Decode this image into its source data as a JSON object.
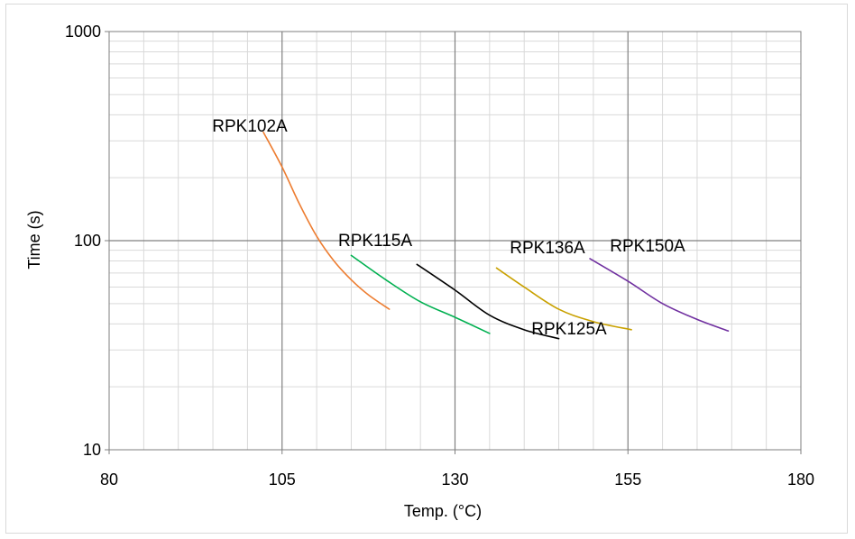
{
  "chart_data": {
    "type": "line",
    "title": "",
    "xlabel": "Temp. (°C)",
    "ylabel": "Time (s)",
    "xlim": [
      80,
      180
    ],
    "ylim": [
      10,
      1000
    ],
    "y_scale": "log",
    "x_ticks": [
      "80",
      "105",
      "130",
      "155",
      "180"
    ],
    "y_ticks": [
      "10",
      "100",
      "1000"
    ],
    "grid": true,
    "legend": "none",
    "series": [
      {
        "name": "RPK102A",
        "color": "#ed7d31",
        "x": [
          102.3,
          105,
          107.5,
          110,
          112.5,
          115,
          117.5,
          120.5
        ],
        "y": [
          330,
          225,
          150,
          105,
          80,
          65,
          55,
          47
        ]
      },
      {
        "name": "RPK115A",
        "color": "#00b050",
        "x": [
          115,
          120,
          125,
          130,
          135
        ],
        "y": [
          85,
          65,
          51,
          43,
          36
        ]
      },
      {
        "name": "RPK125A",
        "color": "#000000",
        "x": [
          124.5,
          130,
          135,
          140,
          145
        ],
        "y": [
          77,
          58,
          44,
          37.5,
          34
        ]
      },
      {
        "name": "RPK136A",
        "color": "#c9a100",
        "x": [
          136,
          140,
          145,
          150,
          155.5
        ],
        "y": [
          74,
          60,
          47,
          41,
          37.5
        ]
      },
      {
        "name": "RPK150A",
        "color": "#7030a0",
        "x": [
          149.5,
          155,
          160,
          165,
          169.5
        ],
        "y": [
          82,
          64,
          50,
          42,
          37
        ]
      }
    ]
  }
}
